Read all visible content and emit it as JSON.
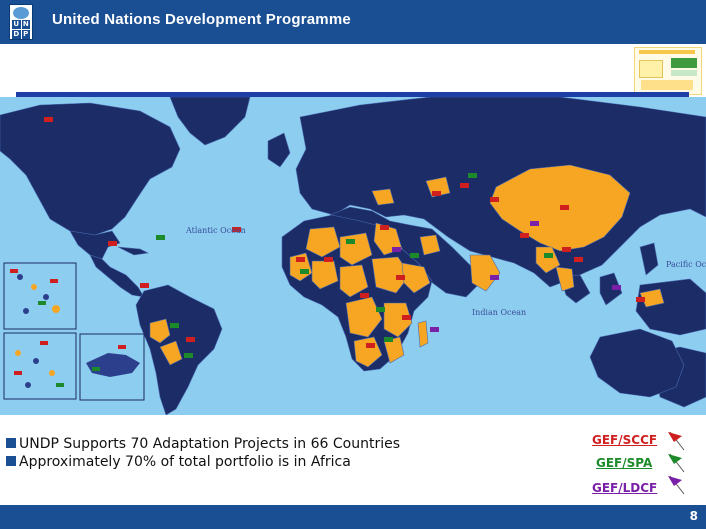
{
  "header": {
    "org_name": "United Nations Development Programme",
    "logo_letters": [
      "U",
      "N",
      "D",
      "P"
    ]
  },
  "map": {
    "ocean_labels": [
      "Atlantic Ocean",
      "Pacific Oce",
      "Indian Ocean"
    ],
    "colors": {
      "ocean": "#8dcdf0",
      "land": "#1b2c66",
      "project_country": "#f6a623",
      "inset_land": "#2b3f8c"
    }
  },
  "bullets": [
    "UNDP Supports 70 Adaptation Projects in 66 Countries",
    "Approximately 70% of total portfolio is in Africa"
  ],
  "legend": [
    {
      "label": "GEF/SCCF",
      "color": "#d01f1f",
      "icon": "red-flag-icon"
    },
    {
      "label": "GEF/SPA",
      "color": "#1c8a2a",
      "icon": "green-flag-icon"
    },
    {
      "label": "GEF/LDCF",
      "color": "#7a1fa8",
      "icon": "purple-flag-icon"
    }
  ],
  "footer": {
    "page_number": "8"
  }
}
